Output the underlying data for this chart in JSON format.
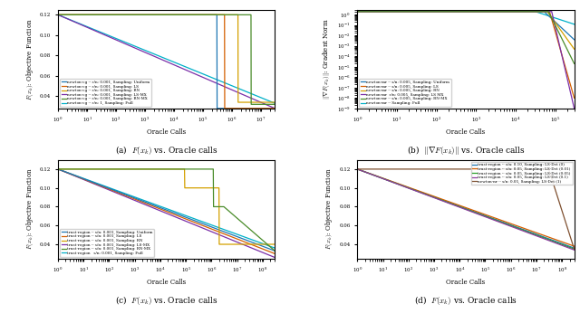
{
  "fig_width": 6.4,
  "fig_height": 3.57,
  "background": "#ffffff",
  "plot_bg": "#ffffff",
  "colors": {
    "blue": "#1f77b4",
    "orange": "#d45f00",
    "yellow": "#d4a000",
    "purple": "#7b2fa8",
    "green": "#4a8c2a",
    "cyan": "#00b0c8"
  },
  "panel_a": {
    "title": "(a)  $F(x_k)$ vs. Oracle calls",
    "xlabel": "Oracle Calls",
    "ylabel": "$F(x_k)$: Objective Function",
    "ylim": [
      0.028,
      0.125
    ],
    "xlim_lo": 1.0,
    "xlim_hi": 30000000.0,
    "legend": [
      "newton-cg -- s/n: 0.001, Sampling: Uniform",
      "newton-cg -- s/n: 0.001, Sampling: LS",
      "newton-cg -- s/n: 0.001, Sampling: RN",
      "newton-cg -- s/n: 0.001, Sampling: LS-MX",
      "newton-cg -- s/n: 0.001, Sampling: RN-MX",
      "newton-cg -- s/n: 1, Sampling: Full"
    ]
  },
  "panel_b": {
    "title": "(b)  $\\|\\nabla F(x_k)\\|$ vs. Oracle calls",
    "xlabel": "Oracle Calls",
    "ylabel": "$\\|\\nabla F(x_k)\\|$: Gradient Norm",
    "ylim_lo": 1e-09,
    "ylim_hi": 3.0,
    "xlim_lo": 1.0,
    "xlim_hi": 300000.0,
    "legend": [
      "newton-mr -- s/n: 0.005, Sampling: Uniform",
      "newton-mr -- s/n: 0.005, Sampling: LS",
      "newton-mr -- s/n: 0.005, Sampling: RN",
      "newton-mr  s/n: 0.005, Sampling: LS MX",
      "newton-mr -- s/n: 0.005, Sampling: RN-MX",
      "newton-mr -- Sampling: Full"
    ]
  },
  "panel_c": {
    "title": "(c)  $F(x_k)$ vs. Oracle calls",
    "xlabel": "Oracle Calls",
    "ylabel": "$F(x_k)$: Objective Function",
    "ylim": [
      0.025,
      0.13
    ],
    "xlim_lo": 1.0,
    "xlim_hi": 300000000.0,
    "legend": [
      "trust-region -- s/n: 0.001, Sampling: Uniform",
      "trust-region -- s/n: 0.001, Sampling: LS",
      "trust-region -- s/n: 0.001, Sampling: RN",
      "trust-region -- s/n: 0.001, Sampling: LS-MX",
      "trust-region -- s/n: 0.001, Sampling: RN-MX",
      "trust-region   s/n: 0.001, Sampling: Full"
    ]
  },
  "panel_d": {
    "title": "(d)  $F(x_k)$ vs. Oracle calls",
    "xlabel": "Oracle Calls",
    "ylabel": "$F(x_k)$: Objective Function",
    "ylim": [
      0.025,
      0.13
    ],
    "xlim_lo": 1.0,
    "xlim_hi": 300000000.0,
    "legend": [
      "trust-region -- s/n: 0.10, Sampling: LS-Det (0)",
      "trust-region -- s/n: 0.05, Sampling: LS-Det (0.01)",
      "trust-region -- s/n: 0.05, Sampling: LS-Det (0.05)",
      "trust-region -- s/n: 0.05, Sampling: LS-Det (0.1)",
      "newton-nr -- s/n: 0.05, Sampling: LS-Det (1)"
    ]
  }
}
